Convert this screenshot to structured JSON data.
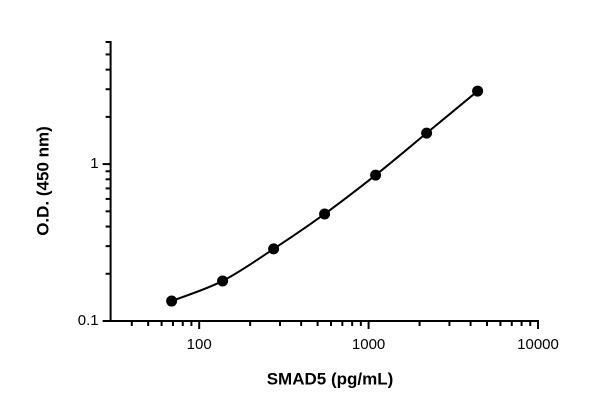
{
  "chart_data": {
    "type": "scatter",
    "x_label": "SMAD5 (pg/mL)",
    "y_label": "O.D. (450 nm)",
    "x_log": true,
    "y_log": true,
    "xlim": [
      30,
      10000
    ],
    "ylim": [
      0.1,
      6
    ],
    "xticks": [
      100,
      1000,
      10000
    ],
    "yticks": [
      0.1,
      1
    ],
    "xminorticks": [
      40,
      50,
      60,
      70,
      80,
      90,
      200,
      300,
      400,
      500,
      600,
      700,
      800,
      900,
      2000,
      3000,
      4000,
      5000,
      6000,
      7000,
      8000,
      9000
    ],
    "yminorticks": [
      0.2,
      0.3,
      0.4,
      0.5,
      0.6,
      0.7,
      0.8,
      0.9,
      2,
      3,
      4,
      5,
      6
    ],
    "curve": true,
    "series": [
      {
        "color": "#000000",
        "x": [
          68.75,
          137.5,
          275,
          550,
          1100,
          2200,
          4400
        ],
        "values": [
          0.134,
          0.18,
          0.288,
          0.481,
          0.851,
          1.575,
          2.92
        ]
      }
    ]
  }
}
